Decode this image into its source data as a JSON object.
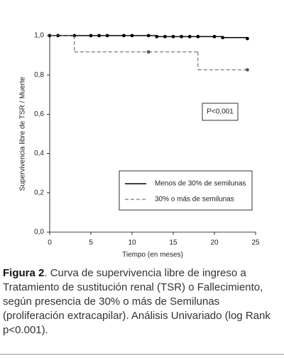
{
  "chart_data": {
    "type": "step",
    "xlabel": "Tiempo (en meses)",
    "ylabel": "Supervivencia libre de TSR / Muerte",
    "xlim": [
      0,
      25
    ],
    "xticks": [
      0,
      5,
      10,
      15,
      20,
      25
    ],
    "ylim": [
      0,
      1
    ],
    "yticks": [
      {
        "value": 0,
        "label": "0,0"
      },
      {
        "value": 0.2,
        "label": "0,2"
      },
      {
        "value": 0.4,
        "label": "0,4"
      },
      {
        "value": 0.6,
        "label": "0,6"
      },
      {
        "value": 0.8,
        "label": "0,8"
      },
      {
        "value": 1,
        "label": "1,0"
      }
    ],
    "annotation": "P<0,001",
    "series": [
      {
        "name": "Menos de 30% de semilunas",
        "color": "#000000",
        "dash": false,
        "x": [
          0,
          1,
          3,
          5,
          6,
          7,
          9,
          10,
          12,
          13,
          14,
          15,
          16,
          17,
          18,
          20,
          21,
          24
        ],
        "values": [
          1,
          1,
          1,
          1,
          1,
          1,
          1,
          1,
          1,
          0.995,
          0.995,
          0.995,
          0.995,
          0.995,
          0.995,
          0.995,
          0.99,
          0.985
        ],
        "censored": [
          true,
          true,
          true,
          true,
          true,
          true,
          true,
          true,
          true,
          true,
          true,
          true,
          true,
          true,
          true,
          true,
          true,
          true
        ]
      },
      {
        "name": "30% o más de semilunas",
        "color": "#555555",
        "dash": true,
        "x": [
          0,
          3,
          12,
          18,
          24
        ],
        "values": [
          1,
          0.917,
          0.917,
          0.826,
          0.826
        ],
        "censored": [
          false,
          false,
          true,
          false,
          true
        ]
      }
    ]
  },
  "caption_label": "Figura 2",
  "caption_text": ". Curva de supervivencia libre de ingreso a Tratamiento de sustitución renal (TSR) o Fallecimiento, según presencia de 30% o más de Semilunas (proliferación extracapilar). Análisis Univariado (log Rank p<0.001)."
}
